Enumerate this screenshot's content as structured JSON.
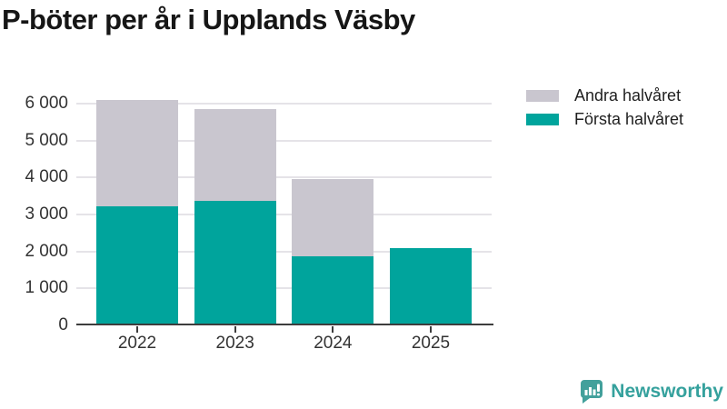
{
  "header": {
    "title": "P-böter per år i Upplands Väsby"
  },
  "legend": {
    "items": [
      {
        "label": "Andra halvåret",
        "color": "#c9c6cf"
      },
      {
        "label": "Första halvåret",
        "color": "#00a49c"
      }
    ]
  },
  "chart_data": {
    "type": "bar",
    "stacked": true,
    "title": "P-böter per år i Upplands Väsby",
    "categories": [
      "2022",
      "2023",
      "2024",
      "2025"
    ],
    "series": [
      {
        "name": "Första halvåret",
        "color": "#00a49c",
        "values": [
          3230,
          3370,
          1860,
          2090
        ]
      },
      {
        "name": "Andra halvåret",
        "color": "#c9c6cf",
        "values": [
          2870,
          2480,
          2090,
          0
        ]
      }
    ],
    "xlabel": "",
    "ylabel": "",
    "ylim": [
      0,
      6000
    ],
    "yticks": [
      0,
      1000,
      2000,
      3000,
      4000,
      5000,
      6000
    ],
    "ytick_labels": [
      "0",
      "1 000",
      "2 000",
      "3 000",
      "4 000",
      "5 000",
      "6 000"
    ],
    "grid": true,
    "legend_position": "top-right",
    "axis_color": "#3d3d3d",
    "gridline_color": "#e5e3e8"
  },
  "branding": {
    "name": "Newsworthy",
    "text_color": "#35a19d",
    "icon_color": "#42a09b",
    "icon": "newsworthy-speech-bubble-bar-chart-icon"
  }
}
